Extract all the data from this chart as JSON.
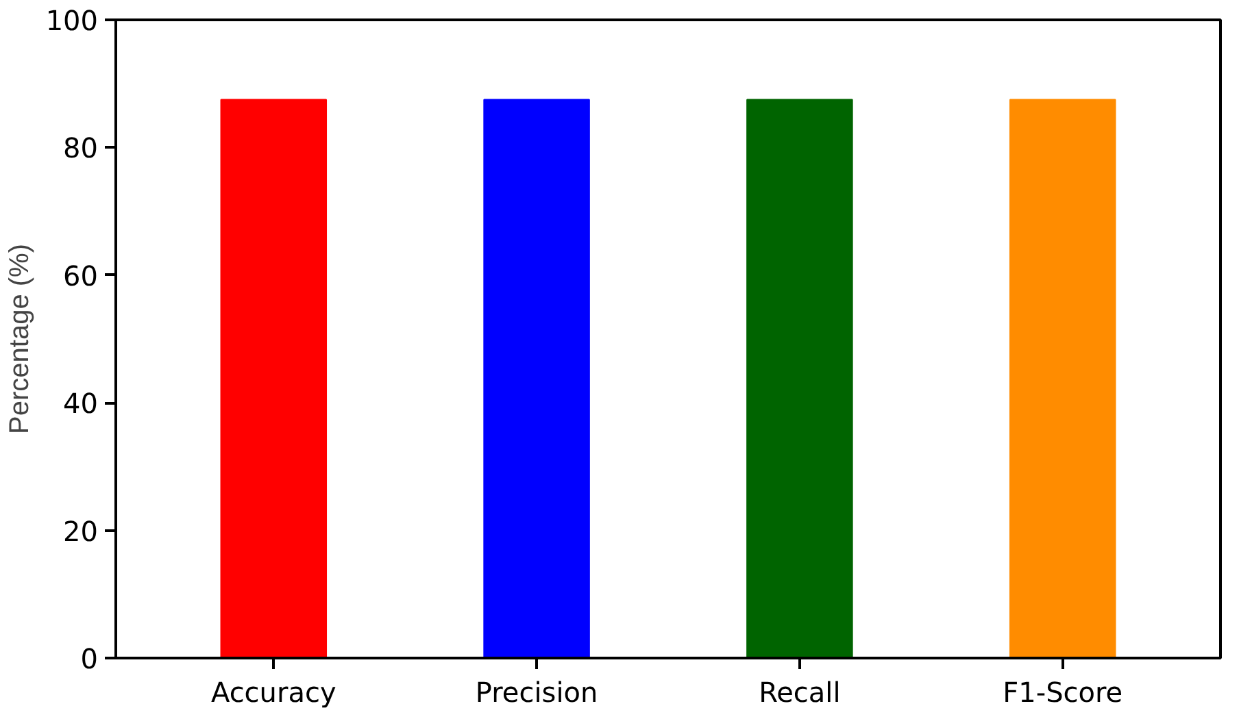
{
  "chart_data": {
    "type": "bar",
    "ylabel": "Percentage (%)",
    "categories": [
      "Accuracy",
      "Precision",
      "Recall",
      "F1-Score"
    ],
    "values": [
      87.5,
      87.5,
      87.5,
      87.5
    ],
    "colors": [
      "#ff0000",
      "#0000ff",
      "#006400",
      "#ff8c00"
    ],
    "ylim": [
      0,
      100
    ],
    "yticks": [
      0,
      20,
      40,
      60,
      80,
      100
    ],
    "grid": false
  }
}
